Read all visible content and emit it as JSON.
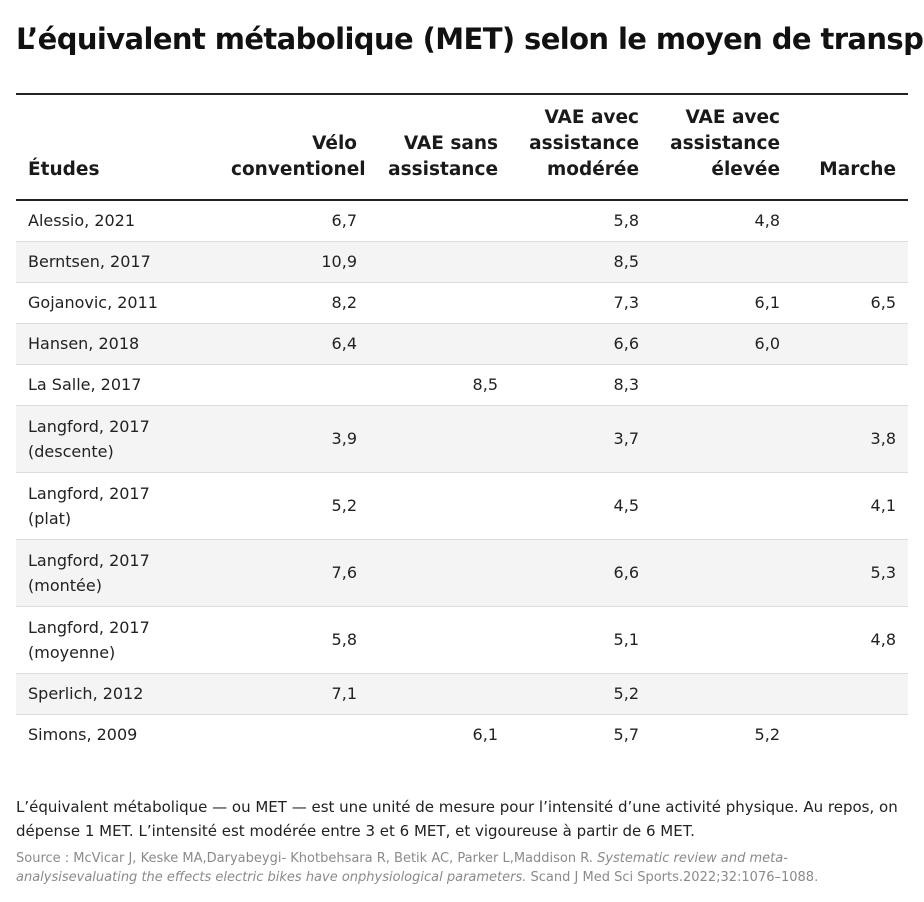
{
  "title": "L’équivalent métabolique (MET) selon le moyen de transport",
  "table": {
    "headers": [
      [
        "Études"
      ],
      [
        "Vélo",
        "conventionel"
      ],
      [
        "VAE sans",
        "assistance"
      ],
      [
        "VAE avec",
        "assistance",
        "modérée"
      ],
      [
        "VAE avec",
        "assistance",
        "élevée"
      ],
      [
        "Marche"
      ]
    ],
    "rows": [
      {
        "study": [
          "Alessio, 2021"
        ],
        "values": [
          "6,7",
          "",
          "5,8",
          "4,8",
          ""
        ]
      },
      {
        "study": [
          "Berntsen, 2017"
        ],
        "values": [
          "10,9",
          "",
          "8,5",
          "",
          ""
        ]
      },
      {
        "study": [
          "Gojanovic, 2011"
        ],
        "values": [
          "8,2",
          "",
          "7,3",
          "6,1",
          "6,5"
        ]
      },
      {
        "study": [
          "Hansen, 2018"
        ],
        "values": [
          "6,4",
          "",
          "6,6",
          "6,0",
          ""
        ]
      },
      {
        "study": [
          "La Salle, 2017"
        ],
        "values": [
          "",
          "8,5",
          "8,3",
          "",
          ""
        ]
      },
      {
        "study": [
          "Langford, 2017",
          "(descente)"
        ],
        "values": [
          "3,9",
          "",
          "3,7",
          "",
          "3,8"
        ]
      },
      {
        "study": [
          "Langford, 2017",
          "(plat)"
        ],
        "values": [
          "5,2",
          "",
          "4,5",
          "",
          "4,1"
        ]
      },
      {
        "study": [
          "Langford, 2017",
          "(montée)"
        ],
        "values": [
          "7,6",
          "",
          "6,6",
          "",
          "5,3"
        ]
      },
      {
        "study": [
          "Langford, 2017",
          "(moyenne)"
        ],
        "values": [
          "5,8",
          "",
          "5,1",
          "",
          "4,8"
        ]
      },
      {
        "study": [
          "Sperlich, 2012"
        ],
        "values": [
          "7,1",
          "",
          "5,2",
          "",
          ""
        ]
      },
      {
        "study": [
          "Simons, 2009"
        ],
        "values": [
          "",
          "6,1",
          "5,7",
          "5,2",
          ""
        ]
      }
    ]
  },
  "note": "L’équivalent métabolique — ou MET — est une unité de mesure pour l’intensité d’une activité physique. Au repos, on dépense 1 MET. L’intensité est modérée entre 3 et 6 MET, et vigoureuse à partir de 6 MET.",
  "source": {
    "prefix": "Source : McVicar J, Keske MA,Daryabeygi- Khotbehsara R, Betik AC, Parker L,Maddison R. ",
    "italic": "Systematic review and meta-analysisevaluating the effects electric bikes have onphysiological parameters.",
    "suffix": " Scand J Med Sci Sports.2022;32:1076–1088."
  }
}
